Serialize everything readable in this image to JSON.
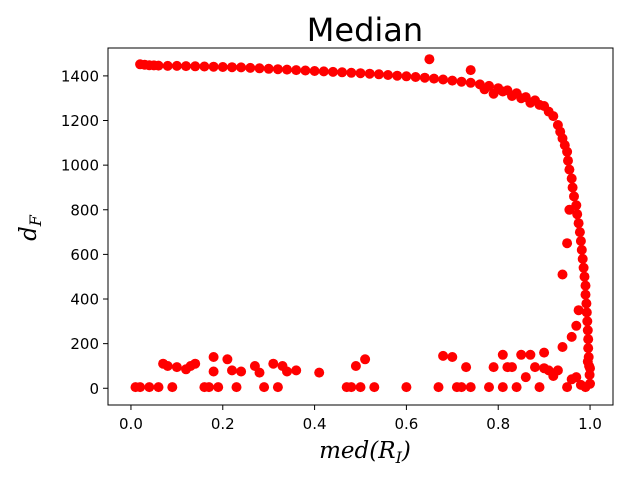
{
  "chart_data": {
    "type": "scatter",
    "title": "Median",
    "xlabel": {
      "base": "med(R",
      "sub": "I",
      "close": ")"
    },
    "ylabel": {
      "base": "d",
      "sub": "F"
    },
    "xlim": [
      -0.05,
      1.05
    ],
    "ylim": [
      -75,
      1525
    ],
    "x_ticks": [
      0.0,
      0.2,
      0.4,
      0.6,
      0.8,
      1.0
    ],
    "x_tick_labels": [
      "0.0",
      "0.2",
      "0.4",
      "0.6",
      "0.8",
      "1.0"
    ],
    "y_ticks": [
      0,
      200,
      400,
      600,
      800,
      1000,
      1200,
      1400
    ],
    "y_tick_labels": [
      "0",
      "200",
      "400",
      "600",
      "800",
      "1000",
      "1200",
      "1400"
    ],
    "grid": false,
    "legend": "none",
    "marker_color": "#ff0000",
    "series": [
      {
        "points": [
          [
            0.02,
            1452
          ],
          [
            0.03,
            1450
          ],
          [
            0.04,
            1448
          ],
          [
            0.05,
            1447
          ],
          [
            0.06,
            1446
          ],
          [
            0.08,
            1445
          ],
          [
            0.1,
            1445
          ],
          [
            0.12,
            1444
          ],
          [
            0.14,
            1443
          ],
          [
            0.16,
            1442
          ],
          [
            0.18,
            1441
          ],
          [
            0.2,
            1440
          ],
          [
            0.22,
            1439
          ],
          [
            0.24,
            1438
          ],
          [
            0.26,
            1436
          ],
          [
            0.28,
            1434
          ],
          [
            0.3,
            1432
          ],
          [
            0.32,
            1430
          ],
          [
            0.34,
            1428
          ],
          [
            0.36,
            1426
          ],
          [
            0.38,
            1424
          ],
          [
            0.4,
            1422
          ],
          [
            0.42,
            1420
          ],
          [
            0.44,
            1418
          ],
          [
            0.46,
            1416
          ],
          [
            0.48,
            1414
          ],
          [
            0.5,
            1412
          ],
          [
            0.52,
            1410
          ],
          [
            0.54,
            1407
          ],
          [
            0.56,
            1404
          ],
          [
            0.58,
            1401
          ],
          [
            0.6,
            1398
          ],
          [
            0.62,
            1395
          ],
          [
            0.64,
            1392
          ],
          [
            0.65,
            1475
          ],
          [
            0.66,
            1388
          ],
          [
            0.68,
            1384
          ],
          [
            0.7,
            1379
          ],
          [
            0.72,
            1374
          ],
          [
            0.74,
            1426
          ],
          [
            0.74,
            1369
          ],
          [
            0.76,
            1362
          ],
          [
            0.77,
            1340
          ],
          [
            0.78,
            1355
          ],
          [
            0.79,
            1320
          ],
          [
            0.8,
            1345
          ],
          [
            0.81,
            1330
          ],
          [
            0.82,
            1335
          ],
          [
            0.83,
            1310
          ],
          [
            0.84,
            1322
          ],
          [
            0.85,
            1300
          ],
          [
            0.86,
            1305
          ],
          [
            0.87,
            1280
          ],
          [
            0.88,
            1290
          ],
          [
            0.89,
            1270
          ],
          [
            0.9,
            1265
          ],
          [
            0.91,
            1240
          ],
          [
            0.92,
            1220
          ],
          [
            0.93,
            1180
          ],
          [
            0.935,
            1150
          ],
          [
            0.94,
            1120
          ],
          [
            0.945,
            1090
          ],
          [
            0.95,
            1060
          ],
          [
            0.952,
            1020
          ],
          [
            0.955,
            980
          ],
          [
            0.96,
            940
          ],
          [
            0.962,
            900
          ],
          [
            0.965,
            860
          ],
          [
            0.97,
            820
          ],
          [
            0.972,
            780
          ],
          [
            0.975,
            740
          ],
          [
            0.978,
            700
          ],
          [
            0.98,
            660
          ],
          [
            0.982,
            620
          ],
          [
            0.984,
            580
          ],
          [
            0.986,
            540
          ],
          [
            0.988,
            500
          ],
          [
            0.99,
            460
          ],
          [
            0.99,
            420
          ],
          [
            0.992,
            380
          ],
          [
            0.993,
            340
          ],
          [
            0.994,
            300
          ],
          [
            0.995,
            260
          ],
          [
            0.996,
            220
          ],
          [
            0.996,
            180
          ],
          [
            0.997,
            140
          ],
          [
            0.998,
            100
          ],
          [
            0.999,
            60
          ],
          [
            1.0,
            20
          ],
          [
            0.955,
            800
          ],
          [
            0.95,
            650
          ],
          [
            0.94,
            510
          ],
          [
            0.96,
            230
          ],
          [
            0.97,
            280
          ],
          [
            0.975,
            350
          ],
          [
            0.01,
            5
          ],
          [
            0.02,
            5
          ],
          [
            0.04,
            5
          ],
          [
            0.06,
            5
          ],
          [
            0.07,
            110
          ],
          [
            0.08,
            100
          ],
          [
            0.09,
            5
          ],
          [
            0.1,
            95
          ],
          [
            0.12,
            85
          ],
          [
            0.13,
            100
          ],
          [
            0.14,
            110
          ],
          [
            0.16,
            5
          ],
          [
            0.17,
            5
          ],
          [
            0.18,
            140
          ],
          [
            0.18,
            75
          ],
          [
            0.19,
            5
          ],
          [
            0.21,
            130
          ],
          [
            0.22,
            80
          ],
          [
            0.23,
            5
          ],
          [
            0.24,
            75
          ],
          [
            0.27,
            100
          ],
          [
            0.28,
            70
          ],
          [
            0.29,
            5
          ],
          [
            0.31,
            110
          ],
          [
            0.32,
            5
          ],
          [
            0.33,
            100
          ],
          [
            0.34,
            75
          ],
          [
            0.36,
            80
          ],
          [
            0.41,
            70
          ],
          [
            0.47,
            5
          ],
          [
            0.48,
            5
          ],
          [
            0.49,
            100
          ],
          [
            0.5,
            5
          ],
          [
            0.51,
            130
          ],
          [
            0.53,
            5
          ],
          [
            0.6,
            5
          ],
          [
            0.67,
            5
          ],
          [
            0.68,
            145
          ],
          [
            0.7,
            140
          ],
          [
            0.71,
            5
          ],
          [
            0.72,
            5
          ],
          [
            0.73,
            95
          ],
          [
            0.74,
            5
          ],
          [
            0.78,
            5
          ],
          [
            0.79,
            95
          ],
          [
            0.81,
            5
          ],
          [
            0.81,
            150
          ],
          [
            0.82,
            95
          ],
          [
            0.83,
            95
          ],
          [
            0.84,
            5
          ],
          [
            0.85,
            150
          ],
          [
            0.86,
            50
          ],
          [
            0.87,
            150
          ],
          [
            0.88,
            95
          ],
          [
            0.89,
            5
          ],
          [
            0.9,
            160
          ],
          [
            0.9,
            90
          ],
          [
            0.91,
            80
          ],
          [
            0.92,
            55
          ],
          [
            0.93,
            80
          ],
          [
            0.94,
            185
          ],
          [
            0.95,
            5
          ],
          [
            0.96,
            40
          ],
          [
            0.97,
            50
          ],
          [
            0.98,
            15
          ],
          [
            0.99,
            5
          ],
          [
            0.995,
            120
          ],
          [
            1.0,
            90
          ]
        ]
      }
    ]
  }
}
